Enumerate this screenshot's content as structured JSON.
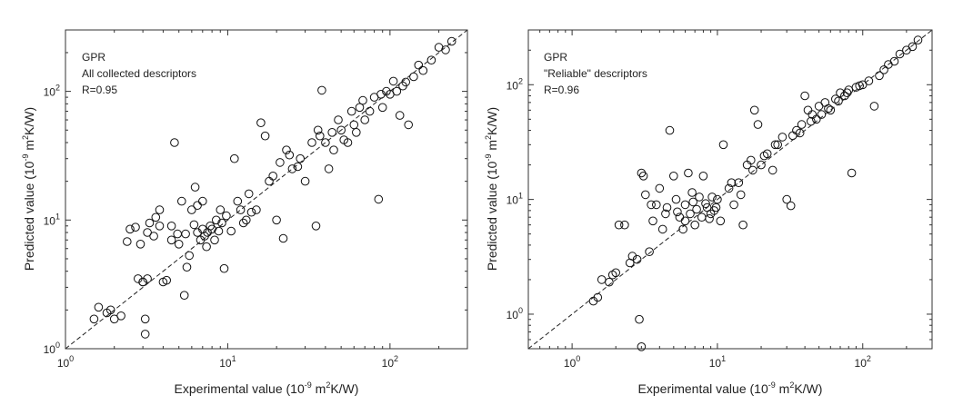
{
  "chart_data": [
    {
      "type": "scatter",
      "xscale": "log",
      "yscale": "log",
      "xlim": [
        1,
        300
      ],
      "ylim": [
        1,
        300
      ],
      "reference_line": "y = x",
      "grid": false,
      "annotation": [
        "GPR",
        "All collected descriptors",
        "R=0.95"
      ],
      "xlabel": {
        "pre": "Experimental value (10",
        "exp1": "-9",
        "mid": " m",
        "exp2": "2",
        "post": "K/W)"
      },
      "ylabel": {
        "pre": "Predicted value (10",
        "exp1": "-9",
        "mid": " m",
        "exp2": "2",
        "post": "K/W)"
      },
      "xticks": [
        {
          "value": 1,
          "base": "10",
          "exp": "0"
        },
        {
          "value": 10,
          "base": "10",
          "exp": "1"
        },
        {
          "value": 100,
          "base": "10",
          "exp": "2"
        }
      ],
      "yticks": [
        {
          "value": 1,
          "base": "10",
          "exp": "0"
        },
        {
          "value": 10,
          "base": "10",
          "exp": "1"
        },
        {
          "value": 100,
          "base": "10",
          "exp": "2"
        }
      ],
      "points": [
        [
          1.5,
          1.7
        ],
        [
          1.6,
          2.1
        ],
        [
          1.8,
          1.9
        ],
        [
          1.9,
          2.0
        ],
        [
          2.0,
          1.7
        ],
        [
          2.2,
          1.8
        ],
        [
          2.4,
          6.8
        ],
        [
          2.5,
          8.5
        ],
        [
          2.7,
          8.8
        ],
        [
          2.8,
          3.5
        ],
        [
          3.0,
          3.3
        ],
        [
          3.0,
          3.3
        ],
        [
          3.1,
          1.7
        ],
        [
          3.1,
          1.3
        ],
        [
          3.2,
          3.5
        ],
        [
          3.3,
          9.5
        ],
        [
          3.5,
          7.5
        ],
        [
          3.6,
          10.5
        ],
        [
          3.8,
          12.0
        ],
        [
          4.0,
          3.3
        ],
        [
          4.2,
          3.4
        ],
        [
          4.5,
          9.0
        ],
        [
          4.7,
          40.0
        ],
        [
          4.9,
          7.8
        ],
        [
          5.2,
          14.0
        ],
        [
          5.4,
          2.6
        ],
        [
          5.6,
          4.3
        ],
        [
          5.8,
          5.3
        ],
        [
          6.0,
          12.0
        ],
        [
          6.3,
          18.0
        ],
        [
          6.5,
          13.0
        ],
        [
          7.0,
          14.0
        ],
        [
          7.5,
          8.0
        ],
        [
          8.5,
          10.0
        ],
        [
          9.0,
          12.0
        ],
        [
          9.5,
          4.2
        ],
        [
          10.5,
          8.2
        ],
        [
          11.0,
          30.0
        ],
        [
          12.0,
          12.0
        ],
        [
          13.0,
          10.0
        ],
        [
          14.0,
          11.5
        ],
        [
          15.0,
          12.0
        ],
        [
          16.0,
          57.0
        ],
        [
          17.0,
          45.0
        ],
        [
          18.0,
          20.0
        ],
        [
          20.0,
          10.0
        ],
        [
          22.0,
          7.2
        ],
        [
          23.0,
          35.0
        ],
        [
          25.0,
          25.0
        ],
        [
          28.0,
          30.0
        ],
        [
          30.0,
          20.0
        ],
        [
          35.0,
          9.0
        ],
        [
          36.0,
          50.0
        ],
        [
          38.0,
          102.0
        ],
        [
          40.0,
          40.0
        ],
        [
          42.0,
          25.0
        ],
        [
          45.0,
          35.0
        ],
        [
          50.0,
          50.0
        ],
        [
          55.0,
          40.0
        ],
        [
          60.0,
          55.0
        ],
        [
          65.0,
          75.0
        ],
        [
          70.0,
          60.0
        ],
        [
          80.0,
          90.0
        ],
        [
          85.0,
          14.5
        ],
        [
          90.0,
          75.0
        ],
        [
          95.0,
          100.0
        ],
        [
          100.0,
          95.0
        ],
        [
          110.0,
          100.0
        ],
        [
          115.0,
          65.0
        ],
        [
          120.0,
          110.0
        ],
        [
          130.0,
          55.0
        ],
        [
          140.0,
          130.0
        ],
        [
          150.0,
          160.0
        ],
        [
          160.0,
          145.0
        ],
        [
          180.0,
          175.0
        ],
        [
          200.0,
          220.0
        ],
        [
          220.0,
          210.0
        ],
        [
          240.0,
          245.0
        ],
        [
          6.5,
          8.0
        ],
        [
          7.0,
          8.5
        ],
        [
          7.2,
          7.5
        ],
        [
          7.8,
          9.0
        ],
        [
          8.0,
          8.5
        ],
        [
          8.3,
          7.0
        ],
        [
          8.8,
          8.2
        ],
        [
          5.0,
          6.5
        ],
        [
          5.5,
          7.8
        ],
        [
          6.2,
          9.2
        ],
        [
          6.8,
          7.0
        ],
        [
          7.4,
          6.2
        ],
        [
          9.2,
          9.5
        ],
        [
          9.8,
          10.8
        ],
        [
          4.5,
          7.0
        ],
        [
          3.8,
          9.0
        ],
        [
          3.2,
          8.0
        ],
        [
          2.9,
          6.5
        ],
        [
          11.5,
          14.0
        ],
        [
          12.5,
          9.5
        ],
        [
          13.5,
          16.0
        ],
        [
          19.0,
          22.0
        ],
        [
          21.0,
          28.0
        ],
        [
          24.0,
          32.0
        ],
        [
          27.0,
          26.0
        ],
        [
          33.0,
          40.0
        ],
        [
          37.0,
          45.0
        ],
        [
          44.0,
          48.0
        ],
        [
          48.0,
          60.0
        ],
        [
          52.0,
          42.0
        ],
        [
          58.0,
          70.0
        ],
        [
          62.0,
          48.0
        ],
        [
          68.0,
          85.0
        ],
        [
          75.0,
          70.0
        ],
        [
          88.0,
          95.0
        ],
        [
          105.0,
          120.0
        ],
        [
          125.0,
          118.0
        ]
      ]
    },
    {
      "type": "scatter",
      "xscale": "log",
      "yscale": "log",
      "xlim": [
        0.5,
        300
      ],
      "ylim": [
        0.5,
        300
      ],
      "reference_line": "y = x",
      "grid": false,
      "annotation": [
        "GPR",
        "\"Reliable\" descriptors",
        "R=0.96"
      ],
      "xlabel": {
        "pre": "Experimental value (10",
        "exp1": "-9",
        "mid": " m",
        "exp2": "2",
        "post": "K/W)"
      },
      "ylabel": {
        "pre": "Predicted value (10",
        "exp1": "-9",
        "mid": " m",
        "exp2": "2",
        "post": "K/W)"
      },
      "xticks": [
        {
          "value": 1,
          "base": "10",
          "exp": "0"
        },
        {
          "value": 10,
          "base": "10",
          "exp": "1"
        },
        {
          "value": 100,
          "base": "10",
          "exp": "2"
        }
      ],
      "yticks": [
        {
          "value": 1,
          "base": "10",
          "exp": "0"
        },
        {
          "value": 10,
          "base": "10",
          "exp": "1"
        },
        {
          "value": 100,
          "base": "10",
          "exp": "2"
        }
      ],
      "points": [
        [
          1.4,
          1.3
        ],
        [
          1.5,
          1.4
        ],
        [
          1.6,
          2.0
        ],
        [
          1.8,
          1.9
        ],
        [
          1.9,
          2.2
        ],
        [
          2.0,
          2.3
        ],
        [
          2.1,
          6.0
        ],
        [
          2.3,
          6.0
        ],
        [
          2.5,
          2.8
        ],
        [
          2.6,
          3.2
        ],
        [
          2.8,
          3.0
        ],
        [
          2.9,
          0.9
        ],
        [
          3.0,
          0.52
        ],
        [
          3.0,
          17.0
        ],
        [
          3.1,
          16.0
        ],
        [
          3.2,
          11.0
        ],
        [
          3.4,
          3.5
        ],
        [
          3.6,
          6.5
        ],
        [
          3.8,
          9.0
        ],
        [
          4.0,
          12.5
        ],
        [
          4.2,
          5.5
        ],
        [
          4.5,
          8.5
        ],
        [
          4.7,
          40.0
        ],
        [
          5.0,
          16.0
        ],
        [
          5.2,
          10.0
        ],
        [
          5.5,
          7.0
        ],
        [
          5.8,
          5.5
        ],
        [
          6.0,
          9.0
        ],
        [
          6.3,
          17.0
        ],
        [
          6.7,
          11.5
        ],
        [
          7.0,
          6.0
        ],
        [
          7.5,
          10.5
        ],
        [
          8.0,
          16.0
        ],
        [
          8.5,
          8.5
        ],
        [
          9.0,
          7.5
        ],
        [
          9.5,
          8.0
        ],
        [
          10.0,
          10.0
        ],
        [
          10.5,
          6.5
        ],
        [
          11.0,
          30.0
        ],
        [
          12.0,
          12.5
        ],
        [
          13.0,
          9.0
        ],
        [
          14.0,
          14.0
        ],
        [
          15.0,
          6.0
        ],
        [
          16.0,
          20.0
        ],
        [
          17.0,
          22.0
        ],
        [
          18.0,
          60.0
        ],
        [
          19.0,
          45.0
        ],
        [
          20.0,
          20.0
        ],
        [
          22.0,
          25.0
        ],
        [
          24.0,
          18.0
        ],
        [
          26.0,
          30.0
        ],
        [
          28.0,
          35.0
        ],
        [
          30.0,
          10.0
        ],
        [
          32.0,
          8.8
        ],
        [
          35.0,
          40.0
        ],
        [
          38.0,
          45.0
        ],
        [
          40.0,
          80.0
        ],
        [
          42.0,
          60.0
        ],
        [
          45.0,
          55.0
        ],
        [
          48.0,
          50.0
        ],
        [
          50.0,
          65.0
        ],
        [
          55.0,
          70.0
        ],
        [
          60.0,
          60.0
        ],
        [
          65.0,
          75.0
        ],
        [
          70.0,
          85.0
        ],
        [
          75.0,
          80.0
        ],
        [
          80.0,
          90.0
        ],
        [
          84.0,
          17.0
        ],
        [
          90.0,
          95.0
        ],
        [
          100.0,
          100.0
        ],
        [
          110.0,
          108.0
        ],
        [
          120.0,
          65.0
        ],
        [
          130.0,
          120.0
        ],
        [
          140.0,
          135.0
        ],
        [
          150.0,
          150.0
        ],
        [
          165.0,
          160.0
        ],
        [
          180.0,
          185.0
        ],
        [
          200.0,
          200.0
        ],
        [
          220.0,
          215.0
        ],
        [
          240.0,
          245.0
        ],
        [
          6.5,
          7.5
        ],
        [
          7.2,
          8.2
        ],
        [
          7.8,
          7.0
        ],
        [
          8.3,
          9.2
        ],
        [
          8.8,
          6.8
        ],
        [
          5.3,
          7.8
        ],
        [
          6.0,
          6.5
        ],
        [
          6.8,
          9.5
        ],
        [
          9.2,
          10.5
        ],
        [
          9.8,
          8.5
        ],
        [
          4.4,
          7.5
        ],
        [
          3.5,
          9.0
        ],
        [
          12.5,
          14.0
        ],
        [
          14.5,
          11.0
        ],
        [
          17.5,
          18.0
        ],
        [
          21.0,
          24.0
        ],
        [
          25.0,
          30.0
        ],
        [
          33.0,
          36.0
        ],
        [
          37.0,
          38.0
        ],
        [
          44.0,
          48.0
        ],
        [
          52.0,
          55.0
        ],
        [
          58.0,
          62.0
        ],
        [
          68.0,
          72.0
        ],
        [
          78.0,
          85.0
        ],
        [
          95.0,
          98.0
        ]
      ]
    }
  ]
}
